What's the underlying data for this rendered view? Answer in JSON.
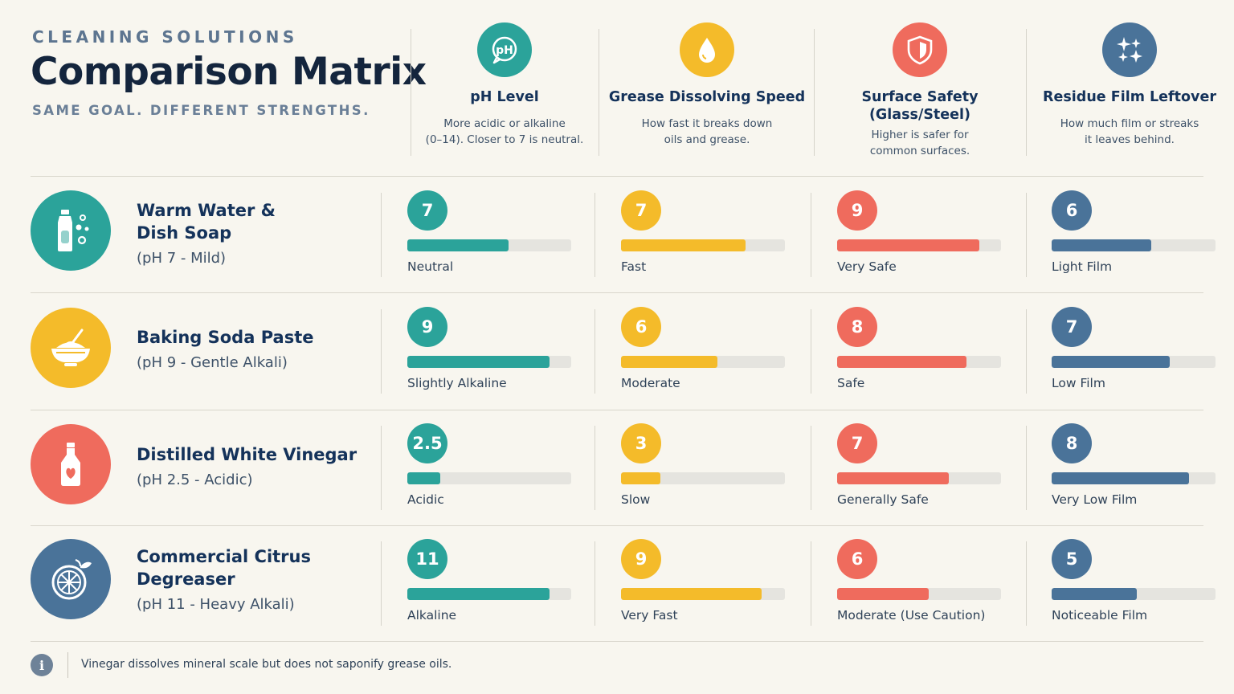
{
  "header": {
    "eyebrow": "CLEANING SOLUTIONS",
    "title": "Comparison Matrix",
    "subtitle": "SAME GOAL. DIFFERENT STRENGTHS."
  },
  "columns": [
    {
      "title": "pH Level",
      "desc1": "More acidic or alkaline",
      "desc2": "(0–14). Closer to 7 is neutral.",
      "icon": "ph-bubble-icon",
      "color": "#2ba39a"
    },
    {
      "title": "Grease Dissolving Speed",
      "desc1": "How fast it breaks down",
      "desc2": "oils and grease.",
      "icon": "droplet-icon",
      "color": "#f4bb2a"
    },
    {
      "title": "Surface Safety",
      "title2": "(Glass/Steel)",
      "desc1": "Higher is safer for",
      "desc2": "common surfaces.",
      "icon": "shield-icon",
      "color": "#ef6b5d"
    },
    {
      "title": "Residue Film Leftover",
      "desc1": "How much film or streaks",
      "desc2": "it leaves behind.",
      "icon": "sparkles-icon",
      "color": "#4a7399"
    }
  ],
  "rows": [
    {
      "name1": "Warm Water &",
      "name2": "Dish Soap",
      "note": "(pH 7 - Mild)",
      "icon": "dish-soap-bottle-icon",
      "color": "#2ba39a",
      "metrics": [
        {
          "value": "7",
          "label": "Neutral",
          "fill": 0.62
        },
        {
          "value": "7",
          "label": "Fast",
          "fill": 0.76
        },
        {
          "value": "9",
          "label": "Very Safe",
          "fill": 0.87
        },
        {
          "value": "6",
          "label": "Light Film",
          "fill": 0.61
        }
      ]
    },
    {
      "name1": "Baking Soda Paste",
      "name2": "",
      "note": "(pH 9 - Gentle Alkali)",
      "icon": "paste-bowl-icon",
      "color": "#f4bb2a",
      "metrics": [
        {
          "value": "9",
          "label": "Slightly Alkaline",
          "fill": 0.87
        },
        {
          "value": "6",
          "label": "Moderate",
          "fill": 0.59
        },
        {
          "value": "8",
          "label": "Safe",
          "fill": 0.79
        },
        {
          "value": "7",
          "label": "Low Film",
          "fill": 0.72
        }
      ]
    },
    {
      "name1": "Distilled White Vinegar",
      "name2": "",
      "note": "(pH 2.5 - Acidic)",
      "icon": "vinegar-bottle-icon",
      "color": "#ef6b5d",
      "metrics": [
        {
          "value": "2.5",
          "label": "Acidic",
          "fill": 0.2
        },
        {
          "value": "3",
          "label": "Slow",
          "fill": 0.24
        },
        {
          "value": "7",
          "label": "Generally Safe",
          "fill": 0.68
        },
        {
          "value": "8",
          "label": "Very Low Film",
          "fill": 0.84
        }
      ]
    },
    {
      "name1": "Commercial Citrus",
      "name2": "Degreaser",
      "note": "(pH 11 - Heavy Alkali)",
      "icon": "citrus-slice-icon",
      "color": "#4a7399",
      "metrics": [
        {
          "value": "11",
          "label": "Alkaline",
          "fill": 0.87
        },
        {
          "value": "9",
          "label": "Very Fast",
          "fill": 0.86
        },
        {
          "value": "6",
          "label": "Moderate (Use Caution)",
          "fill": 0.56
        },
        {
          "value": "5",
          "label": "Noticeable Film",
          "fill": 0.52
        }
      ]
    }
  ],
  "footer": {
    "note": "Vinegar dissolves mineral scale but does not saponify grease oils.",
    "icon": "info-icon"
  },
  "chart_data": {
    "type": "table",
    "title": "Comparison Matrix",
    "columns": [
      "pH Level",
      "Grease Dissolving Speed",
      "Surface Safety (Glass/Steel)",
      "Residue Film Leftover"
    ],
    "rows": [
      "Warm Water & Dish Soap",
      "Baking Soda Paste",
      "Distilled White Vinegar",
      "Commercial Citrus Degreaser"
    ],
    "values": [
      [
        7,
        7,
        9,
        6
      ],
      [
        9,
        6,
        8,
        7
      ],
      [
        2.5,
        3,
        7,
        8
      ],
      [
        11,
        9,
        6,
        5
      ]
    ],
    "labels": [
      [
        "Neutral",
        "Fast",
        "Very Safe",
        "Light Film"
      ],
      [
        "Slightly Alkaline",
        "Moderate",
        "Safe",
        "Low Film"
      ],
      [
        "Acidic",
        "Slow",
        "Generally Safe",
        "Very Low Film"
      ],
      [
        "Alkaline",
        "Very Fast",
        "Moderate (Use Caution)",
        "Noticeable Film"
      ]
    ]
  }
}
